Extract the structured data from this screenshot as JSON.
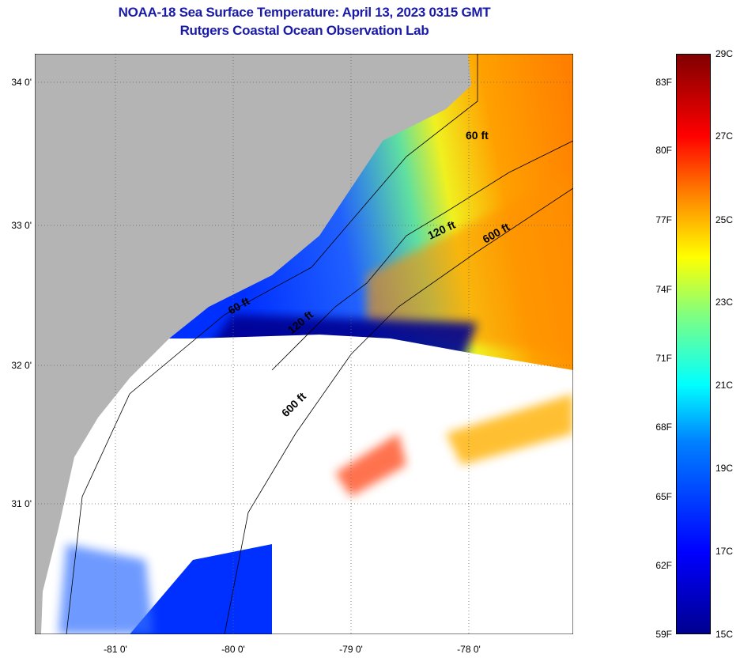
{
  "title": {
    "line1": "NOAA-18 Sea Surface Temperature:  April 13, 2023 0315 GMT",
    "line2": "Rutgers Coastal Ocean Observation Lab"
  },
  "map": {
    "lat_labels": [
      "34 0'",
      "33 0'",
      "32 0'",
      "31 0'"
    ],
    "lon_labels": [
      "-81 0'",
      "-80 0'",
      "-79 0'",
      "-78 0'"
    ],
    "contour_labels": [
      "60 ft",
      "120 ft",
      "600 ft",
      "60 ft",
      "120 ft",
      "600 ft"
    ],
    "colors": {
      "land": "#b4b4b4",
      "cloud": "#ffffff"
    }
  },
  "colorbar": {
    "f_labels": [
      "83F",
      "80F",
      "77F",
      "74F",
      "71F",
      "68F",
      "65F",
      "62F",
      "59F"
    ],
    "c_labels": [
      "29C",
      "27C",
      "25C",
      "23C",
      "21C",
      "19C",
      "17C",
      "15C"
    ],
    "range_c": [
      15,
      29
    ]
  }
}
